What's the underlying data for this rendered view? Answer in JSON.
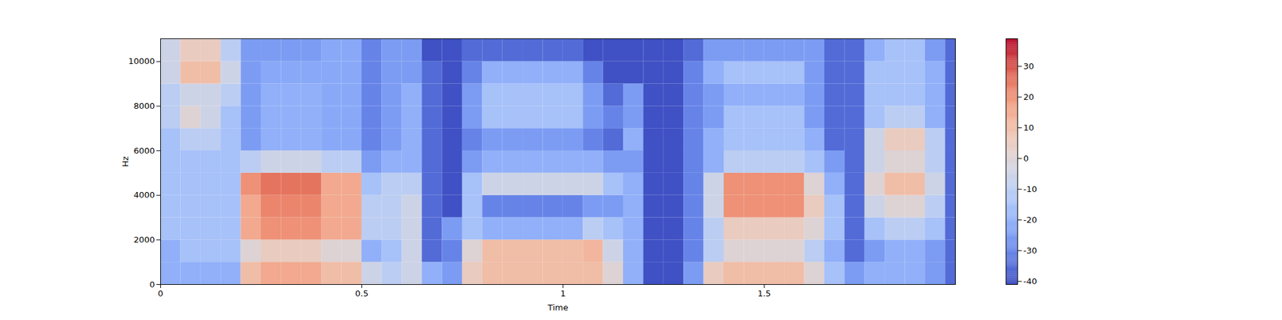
{
  "chart_data": {
    "type": "heatmap",
    "xlabel": "Time",
    "ylabel": "Hz",
    "color": "coolwarm",
    "xlim": [
      0,
      1.975
    ],
    "ylim": [
      0,
      11025
    ],
    "xticks": [
      0,
      0.5,
      1,
      1.5
    ],
    "yticks": [
      0,
      2000,
      4000,
      6000,
      8000,
      10000
    ],
    "x_edges": [
      0,
      0.05,
      0.1,
      0.15,
      0.2,
      0.25,
      0.3,
      0.35,
      0.4,
      0.45,
      0.5,
      0.55,
      0.6,
      0.65,
      0.7,
      0.75,
      0.8,
      0.85,
      0.9,
      0.95,
      1.0,
      1.05,
      1.1,
      1.15,
      1.2,
      1.25,
      1.3,
      1.35,
      1.4,
      1.45,
      1.5,
      1.55,
      1.6,
      1.65,
      1.7,
      1.75,
      1.8,
      1.85,
      1.9,
      1.95,
      1.975
    ],
    "y_edges": [
      0,
      1000,
      2000,
      3000,
      4000,
      5000,
      6000,
      7000,
      8000,
      9000,
      10000,
      11025
    ],
    "z": [
      [
        -20,
        -20,
        -15,
        -15,
        -15,
        -15,
        -15,
        -10,
        -10,
        -5,
        -5
      ],
      [
        -20,
        -15,
        -15,
        -15,
        -15,
        -15,
        -10,
        0,
        -5,
        10,
        5
      ],
      [
        -20,
        -15,
        -15,
        -15,
        -15,
        -15,
        -10,
        -5,
        -5,
        10,
        5
      ],
      [
        -20,
        -15,
        -15,
        -15,
        -15,
        -15,
        -15,
        -15,
        -10,
        -5,
        -10
      ],
      [
        10,
        0,
        15,
        15,
        20,
        -10,
        -25,
        -25,
        -25,
        -25,
        -25
      ],
      [
        15,
        5,
        20,
        22,
        25,
        -5,
        -20,
        -20,
        -20,
        -22,
        -25
      ],
      [
        15,
        5,
        20,
        22,
        25,
        -5,
        -20,
        -20,
        -20,
        -22,
        -25
      ],
      [
        15,
        5,
        20,
        22,
        25,
        -5,
        -20,
        -20,
        -20,
        -22,
        -25
      ],
      [
        10,
        0,
        15,
        15,
        15,
        -10,
        -22,
        -22,
        -22,
        -22,
        -22
      ],
      [
        10,
        0,
        15,
        15,
        15,
        -10,
        -22,
        -22,
        -22,
        -22,
        -22
      ],
      [
        -5,
        -20,
        -10,
        -10,
        -15,
        -25,
        -30,
        -30,
        -30,
        -30,
        -30
      ],
      [
        -10,
        -15,
        -10,
        -10,
        -10,
        -20,
        -25,
        -25,
        -25,
        -25,
        -25
      ],
      [
        -5,
        -5,
        -5,
        -5,
        -10,
        -20,
        -20,
        -20,
        -20,
        -25,
        -25
      ],
      [
        -20,
        -35,
        -35,
        -35,
        -35,
        -35,
        -35,
        -35,
        -35,
        -35,
        -40
      ],
      [
        -25,
        -30,
        -25,
        -40,
        -40,
        -40,
        -40,
        -40,
        -40,
        -40,
        -40
      ],
      [
        5,
        0,
        -15,
        -15,
        -15,
        -25,
        -30,
        -25,
        -25,
        -30,
        -35
      ],
      [
        10,
        10,
        -20,
        -30,
        -5,
        -20,
        -25,
        -15,
        -15,
        -20,
        -35
      ],
      [
        10,
        10,
        -20,
        -30,
        -5,
        -20,
        -25,
        -15,
        -15,
        -20,
        -35
      ],
      [
        10,
        10,
        -20,
        -30,
        -5,
        -20,
        -25,
        -15,
        -15,
        -20,
        -35
      ],
      [
        10,
        10,
        -20,
        -30,
        -5,
        -20,
        -25,
        -15,
        -15,
        -20,
        -35
      ],
      [
        10,
        10,
        -20,
        -30,
        -5,
        -20,
        -25,
        -15,
        -15,
        -20,
        -35
      ],
      [
        10,
        12,
        -10,
        -25,
        -5,
        -20,
        -30,
        -25,
        -25,
        -30,
        -40
      ],
      [
        0,
        -5,
        -15,
        -25,
        -15,
        -25,
        -35,
        -30,
        -35,
        -40,
        -40
      ],
      [
        -20,
        -20,
        -20,
        -20,
        -20,
        -25,
        -20,
        -25,
        -25,
        -40,
        -40
      ],
      [
        -40,
        -40,
        -40,
        -40,
        -40,
        -40,
        -40,
        -40,
        -40,
        -40,
        -40
      ],
      [
        -40,
        -40,
        -40,
        -40,
        -40,
        -40,
        -40,
        -40,
        -40,
        -40,
        -40
      ],
      [
        -25,
        -30,
        -30,
        -30,
        -30,
        -30,
        -30,
        -30,
        -30,
        -30,
        -35
      ],
      [
        5,
        -10,
        -10,
        -5,
        -5,
        -20,
        -20,
        -25,
        -25,
        -20,
        -25
      ],
      [
        10,
        0,
        5,
        20,
        20,
        -10,
        -15,
        -15,
        -20,
        -15,
        -25
      ],
      [
        10,
        0,
        5,
        20,
        20,
        -10,
        -15,
        -15,
        -20,
        -15,
        -25
      ],
      [
        10,
        0,
        5,
        20,
        20,
        -10,
        -15,
        -15,
        -20,
        -15,
        -25
      ],
      [
        10,
        0,
        5,
        20,
        20,
        -10,
        -15,
        -15,
        -20,
        -15,
        -25
      ],
      [
        0,
        -10,
        0,
        5,
        0,
        -15,
        -20,
        -25,
        -25,
        -25,
        -25
      ],
      [
        -15,
        -20,
        -15,
        -15,
        -20,
        -25,
        -35,
        -35,
        -35,
        -35,
        -35
      ],
      [
        -25,
        -35,
        -35,
        -35,
        -35,
        -35,
        -35,
        -35,
        -35,
        -35,
        -35
      ],
      [
        -20,
        -25,
        -15,
        -5,
        0,
        -5,
        -5,
        -15,
        -15,
        -15,
        -20
      ],
      [
        -20,
        -20,
        -10,
        0,
        10,
        0,
        5,
        -10,
        -15,
        -15,
        -15
      ],
      [
        -20,
        -20,
        -10,
        0,
        10,
        0,
        5,
        -10,
        -15,
        -15,
        -15
      ],
      [
        -25,
        -25,
        -15,
        -10,
        -5,
        -10,
        -10,
        -20,
        -20,
        -20,
        -25
      ],
      [
        -35,
        -35,
        -35,
        -35,
        -35,
        -35,
        -35,
        -35,
        -35,
        -35,
        -35
      ]
    ],
    "colorbar": {
      "range": [
        -41,
        39
      ],
      "ticks": [
        -40,
        -30,
        -20,
        -10,
        0,
        10,
        20,
        30
      ]
    }
  }
}
